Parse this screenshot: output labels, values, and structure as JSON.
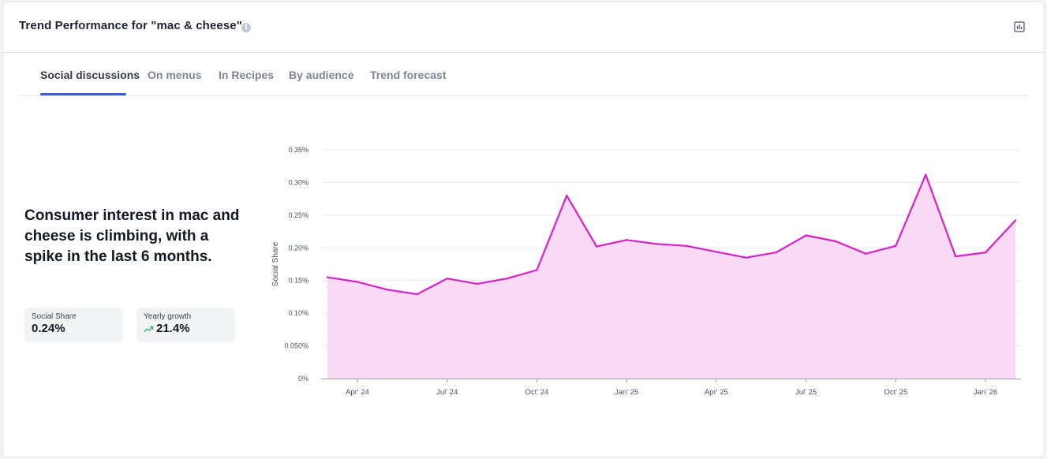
{
  "header": {
    "title": "Trend Performance for \"mac & cheese\"",
    "info_icon": "info-icon",
    "chart_toggle_icon": "bar-chart-icon"
  },
  "tabs": [
    {
      "label": "Social discussions",
      "active": true
    },
    {
      "label": "On menus",
      "active": false
    },
    {
      "label": "In Recipes",
      "active": false
    },
    {
      "label": "By audience",
      "active": false
    },
    {
      "label": "Trend forecast",
      "active": false
    }
  ],
  "summary": {
    "headline": "Consumer interest in mac and cheese is climbing, with a spike in the last 6 months.",
    "social_share": {
      "label": "Social Share",
      "value": "0.24%"
    },
    "yearly_growth": {
      "label": "Yearly growth",
      "value": "21.4%",
      "icon": "trending-up-icon",
      "color": "#3aa86b"
    }
  },
  "colors": {
    "accent": "#3b5bdb",
    "line": "#d81fc8",
    "area": "#f9d9f3"
  },
  "chart_data": {
    "type": "area",
    "ylabel": "Social Share",
    "ylim": [
      0,
      0.35
    ],
    "y_ticks": [
      "0%",
      "0.050%",
      "0.10%",
      "0.15%",
      "0.20%",
      "0.25%",
      "0.30%",
      "0.35%"
    ],
    "x_ticks": [
      "Apr' 24",
      "Jul' 24",
      "Oct' 24",
      "Jan' 25",
      "Apr' 25",
      "Jul' 25",
      "Oct' 25",
      "Jan' 26"
    ],
    "grid": true,
    "series": [
      {
        "values": [
          0.155,
          0.148,
          0.136,
          0.129,
          0.153,
          0.145,
          0.153,
          0.166,
          0.28,
          0.202,
          0.212,
          0.206,
          0.203,
          0.194,
          0.185,
          0.193,
          0.219,
          0.21,
          0.191,
          0.203,
          0.312,
          0.187,
          0.193,
          0.242
        ]
      }
    ]
  }
}
